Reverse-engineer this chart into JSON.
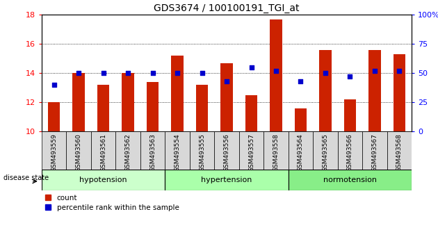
{
  "title": "GDS3674 / 100100191_TGI_at",
  "samples": [
    "GSM493559",
    "GSM493560",
    "GSM493561",
    "GSM493562",
    "GSM493563",
    "GSM493554",
    "GSM493555",
    "GSM493556",
    "GSM493557",
    "GSM493558",
    "GSM493564",
    "GSM493565",
    "GSM493566",
    "GSM493567",
    "GSM493568"
  ],
  "count_values": [
    12.0,
    14.0,
    13.2,
    14.0,
    13.4,
    15.2,
    13.2,
    14.7,
    12.5,
    17.7,
    11.6,
    15.6,
    12.2,
    15.6,
    15.3
  ],
  "percentile_values": [
    40,
    50,
    50,
    50,
    50,
    50,
    50,
    43,
    55,
    52,
    43,
    50,
    47,
    52,
    52
  ],
  "groups": [
    {
      "label": "hypotension",
      "start": 0,
      "end": 5
    },
    {
      "label": "hypertension",
      "start": 5,
      "end": 10
    },
    {
      "label": "normotension",
      "start": 10,
      "end": 15
    }
  ],
  "group_colors": [
    "#ccffcc",
    "#aaffaa",
    "#88ee88"
  ],
  "ylim_left": [
    10,
    18
  ],
  "ylim_right": [
    0,
    100
  ],
  "yticks_left": [
    10,
    12,
    14,
    16,
    18
  ],
  "yticks_right": [
    0,
    25,
    50,
    75,
    100
  ],
  "bar_color": "#cc2200",
  "dot_color": "#0000cc",
  "background_color": "#ffffff"
}
